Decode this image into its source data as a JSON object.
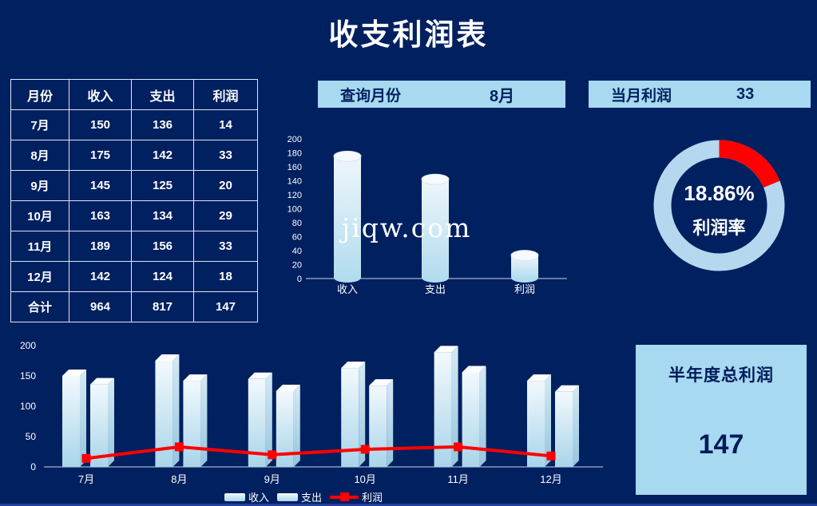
{
  "title": "收支利润表",
  "watermark": "jiqw.com",
  "colors": {
    "background": "#002060",
    "panel_blue": "#a7d9f0",
    "accent_red": "#ff0000",
    "text_light": "#ffffff",
    "text_dark": "#00205f",
    "bottom_edge": "#2140a0"
  },
  "query_panel": {
    "label": "查询月份",
    "value": "8月"
  },
  "current_profit_panel": {
    "label": "当月利润",
    "value": "33"
  },
  "summary_panel": {
    "title": "半年度总利润",
    "value": "147"
  },
  "table": {
    "headers": [
      "月份",
      "收入",
      "支出",
      "利润"
    ],
    "rows": [
      [
        "7月",
        "150",
        "136",
        "14"
      ],
      [
        "8月",
        "175",
        "142",
        "33"
      ],
      [
        "9月",
        "145",
        "125",
        "20"
      ],
      [
        "10月",
        "163",
        "134",
        "29"
      ],
      [
        "11月",
        "189",
        "156",
        "33"
      ],
      [
        "12月",
        "142",
        "124",
        "18"
      ],
      [
        "合计",
        "964",
        "817",
        "147"
      ]
    ]
  },
  "chart_data": [
    {
      "id": "month-detail-bar",
      "type": "bar",
      "bar_style": "cylinder",
      "categories": [
        "收入",
        "支出",
        "利润"
      ],
      "values": [
        175,
        142,
        33
      ],
      "ylim": [
        0,
        200
      ],
      "yticks": [
        0,
        20,
        40,
        60,
        80,
        100,
        120,
        140,
        160,
        180,
        200
      ],
      "grid": false,
      "title": "",
      "xlabel": "",
      "ylabel": ""
    },
    {
      "id": "profit-rate-donut",
      "type": "pie",
      "values": [
        18.86,
        81.14
      ],
      "colors": [
        "#ff0000",
        "#b6d8ef"
      ],
      "center_text": [
        "18.86%",
        "利润率"
      ],
      "start_angle_deg": 0,
      "title": ""
    },
    {
      "id": "half-year-combo",
      "type": "bar",
      "categories": [
        "7月",
        "8月",
        "9月",
        "10月",
        "11月",
        "12月"
      ],
      "series": [
        {
          "name": "收入",
          "type": "bar",
          "values": [
            150,
            175,
            145,
            163,
            189,
            142
          ]
        },
        {
          "name": "支出",
          "type": "bar",
          "values": [
            136,
            142,
            125,
            134,
            156,
            124
          ]
        },
        {
          "name": "利润",
          "type": "line",
          "values": [
            14,
            33,
            20,
            29,
            33,
            18
          ],
          "color": "#ff0000"
        }
      ],
      "ylim": [
        0,
        200
      ],
      "yticks": [
        0,
        50,
        100,
        150,
        200
      ],
      "legend_position": "bottom",
      "title": "",
      "xlabel": "",
      "ylabel": ""
    }
  ]
}
